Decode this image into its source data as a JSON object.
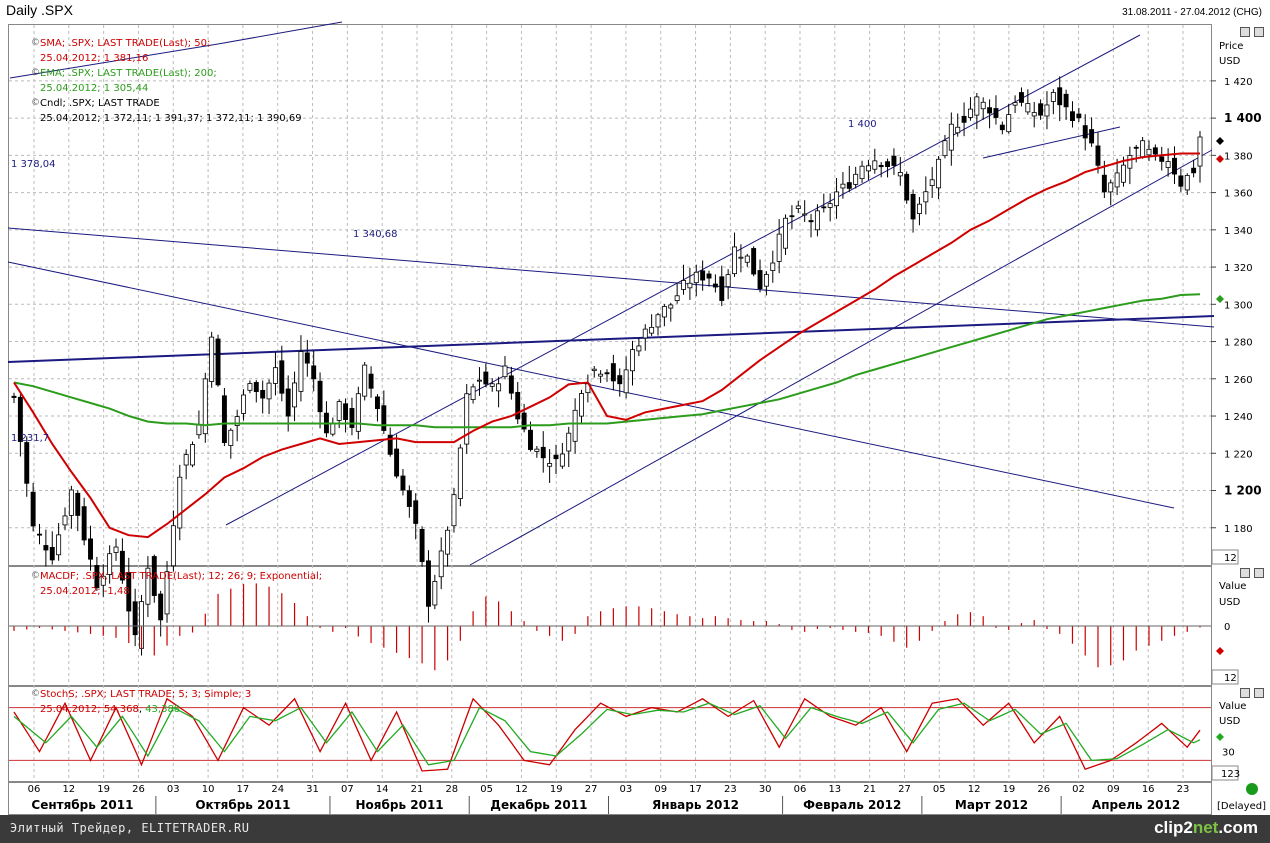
{
  "header": {
    "title": "Daily .SPX",
    "date_range": "31.08.2011 - 27.04.2012 (CHG)"
  },
  "footer": {
    "text": "Элитный Трейдер, ELITETRADER.RU",
    "logo_prefix": "clip2",
    "logo_suffix": "net",
    "logo_tld": ".com"
  },
  "price_panel": {
    "axis_title": "Price",
    "axis_unit": "USD",
    "corner_label": "12",
    "sma_label": "SMA; .SPX; LAST TRADE(Last);  50;",
    "sma_value": "25.04.2012; 1 381,16",
    "ema_label": "EMA; .SPX; LAST TRADE(Last);  200;",
    "ema_value": "25.04.2012; 1 305,44",
    "candle_label": "Cndl; .SPX; LAST TRADE",
    "candle_value": "25.04.2012; 1 372,11; 1 391,37; 1 372,11; 1 390,69",
    "annotations": [
      "1 400",
      "1 378,04",
      "1 340,68",
      "1 231,7"
    ]
  },
  "macd_panel": {
    "label": "MACDF; .SPX; LAST TRADE(Last);  12; 26; 9; Exponential;",
    "value": "25.04.2012; -1,48",
    "axis_title": "Value",
    "axis_unit": "USD",
    "zero_label": "0",
    "corner_label": "12"
  },
  "stoch_panel": {
    "label": "StochS; .SPX; LAST TRADE;  5; 3; Simple; 3",
    "value_prefix": "25.04.2012; ",
    "value_k": "54,368",
    "value_d": "43,388",
    "axis_title": "Value",
    "axis_unit": "USD",
    "tick_label": "30",
    "corner_label": "123"
  },
  "status": "[Delayed]",
  "chart_data": {
    "type": "candlestick",
    "title": "Daily .SPX",
    "ylabel": "Price",
    "yunit": "USD",
    "ylim": [
      1160,
      1450
    ],
    "y_ticks": [
      1180,
      1200,
      1220,
      1240,
      1260,
      1280,
      1300,
      1320,
      1340,
      1360,
      1380,
      1400,
      1420
    ],
    "y_tick_labels": [
      "1 180",
      "1 200",
      "1 220",
      "1 240",
      "1 260",
      "1 280",
      "1 300",
      "1 320",
      "1 340",
      "1 360",
      "1 380",
      "1 400",
      "1 420"
    ],
    "bold_ticks": [
      1200,
      1400
    ],
    "months": [
      "Сентябрь 2011",
      "Октябрь 2011",
      "Ноябрь 2011",
      "Декабрь 2011",
      "Январь 2012",
      "Февраль 2012",
      "Март 2012",
      "Апрель 2012"
    ],
    "day_labels": [
      "06",
      "12",
      "19",
      "26",
      "03",
      "10",
      "17",
      "24",
      "31",
      "07",
      "14",
      "21",
      "28",
      "05",
      "12",
      "19",
      "27",
      "03",
      "09",
      "17",
      "23",
      "30",
      "06",
      "13",
      "21",
      "27",
      "05",
      "12",
      "19",
      "26",
      "02",
      "09",
      "16",
      "23"
    ],
    "month_start_day_index": [
      0,
      4,
      9,
      13,
      17,
      22,
      26,
      30
    ],
    "key_levels": {
      "sma50_last": 1381.16,
      "ema200_last": 1305.44,
      "close_last": 1390.69
    },
    "anchors": [
      [
        0,
        1250
      ],
      [
        3,
        1180
      ],
      [
        6,
        1165
      ],
      [
        9,
        1200
      ],
      [
        13,
        1150
      ],
      [
        16,
        1170
      ],
      [
        19,
        1120
      ],
      [
        21,
        1160
      ],
      [
        23,
        1130
      ],
      [
        26,
        1210
      ],
      [
        29,
        1235
      ],
      [
        31,
        1285
      ],
      [
        33,
        1225
      ],
      [
        35,
        1240
      ],
      [
        37,
        1260
      ],
      [
        39,
        1250
      ],
      [
        41,
        1265
      ],
      [
        43,
        1240
      ],
      [
        45,
        1275
      ],
      [
        47,
        1260
      ],
      [
        49,
        1230
      ],
      [
        51,
        1245
      ],
      [
        53,
        1235
      ],
      [
        55,
        1265
      ],
      [
        57,
        1245
      ],
      [
        59,
        1220
      ],
      [
        61,
        1200
      ],
      [
        63,
        1180
      ],
      [
        65,
        1140
      ],
      [
        67,
        1165
      ],
      [
        69,
        1195
      ],
      [
        71,
        1250
      ],
      [
        73,
        1260
      ],
      [
        75,
        1255
      ],
      [
        77,
        1265
      ],
      [
        79,
        1240
      ],
      [
        81,
        1225
      ],
      [
        83,
        1218
      ],
      [
        85,
        1215
      ],
      [
        87,
        1230
      ],
      [
        89,
        1255
      ],
      [
        91,
        1265
      ],
      [
        93,
        1265
      ],
      [
        95,
        1255
      ],
      [
        97,
        1275
      ],
      [
        99,
        1285
      ],
      [
        101,
        1295
      ],
      [
        103,
        1300
      ],
      [
        105,
        1310
      ],
      [
        107,
        1315
      ],
      [
        109,
        1315
      ],
      [
        111,
        1305
      ],
      [
        113,
        1330
      ],
      [
        115,
        1325
      ],
      [
        117,
        1310
      ],
      [
        119,
        1325
      ],
      [
        121,
        1345
      ],
      [
        123,
        1350
      ],
      [
        125,
        1345
      ],
      [
        127,
        1350
      ],
      [
        129,
        1360
      ],
      [
        131,
        1365
      ],
      [
        133,
        1375
      ],
      [
        135,
        1378
      ],
      [
        137,
        1375
      ],
      [
        139,
        1370
      ],
      [
        141,
        1345
      ],
      [
        143,
        1360
      ],
      [
        145,
        1375
      ],
      [
        147,
        1395
      ],
      [
        149,
        1400
      ],
      [
        151,
        1410
      ],
      [
        153,
        1405
      ],
      [
        155,
        1395
      ],
      [
        157,
        1410
      ],
      [
        159,
        1405
      ],
      [
        161,
        1402
      ],
      [
        163,
        1412
      ],
      [
        165,
        1405
      ],
      [
        167,
        1398
      ],
      [
        169,
        1385
      ],
      [
        171,
        1360
      ],
      [
        173,
        1368
      ],
      [
        175,
        1380
      ],
      [
        177,
        1385
      ],
      [
        179,
        1378
      ],
      [
        181,
        1378
      ],
      [
        183,
        1365
      ],
      [
        185,
        1372
      ],
      [
        186,
        1390
      ]
    ],
    "sma50": [
      [
        0,
        1258
      ],
      [
        3,
        1242
      ],
      [
        6,
        1225
      ],
      [
        9,
        1210
      ],
      [
        12,
        1196
      ],
      [
        15,
        1180
      ],
      [
        18,
        1176
      ],
      [
        21,
        1175
      ],
      [
        24,
        1182
      ],
      [
        27,
        1190
      ],
      [
        30,
        1198
      ],
      [
        33,
        1207
      ],
      [
        36,
        1212
      ],
      [
        39,
        1218
      ],
      [
        42,
        1222
      ],
      [
        45,
        1225
      ],
      [
        48,
        1228
      ],
      [
        51,
        1225
      ],
      [
        54,
        1226
      ],
      [
        57,
        1227
      ],
      [
        60,
        1228
      ],
      [
        63,
        1226
      ],
      [
        66,
        1226
      ],
      [
        69,
        1226
      ],
      [
        72,
        1232
      ],
      [
        75,
        1237
      ],
      [
        78,
        1240
      ],
      [
        81,
        1245
      ],
      [
        84,
        1250
      ],
      [
        87,
        1257
      ],
      [
        90,
        1258
      ],
      [
        93,
        1240
      ],
      [
        96,
        1238
      ],
      [
        99,
        1242
      ],
      [
        102,
        1244
      ],
      [
        105,
        1246
      ],
      [
        108,
        1248
      ],
      [
        111,
        1254
      ],
      [
        114,
        1262
      ],
      [
        117,
        1270
      ],
      [
        120,
        1277
      ],
      [
        123,
        1284
      ],
      [
        126,
        1290
      ],
      [
        129,
        1296
      ],
      [
        132,
        1302
      ],
      [
        135,
        1308
      ],
      [
        138,
        1315
      ],
      [
        141,
        1321
      ],
      [
        144,
        1327
      ],
      [
        147,
        1333
      ],
      [
        150,
        1340
      ],
      [
        153,
        1345
      ],
      [
        156,
        1351
      ],
      [
        159,
        1357
      ],
      [
        162,
        1362
      ],
      [
        165,
        1366
      ],
      [
        168,
        1371
      ],
      [
        171,
        1374
      ],
      [
        174,
        1377
      ],
      [
        177,
        1379
      ],
      [
        180,
        1380
      ],
      [
        183,
        1381
      ],
      [
        186,
        1381
      ]
    ],
    "ema200": [
      [
        0,
        1258
      ],
      [
        3,
        1256
      ],
      [
        6,
        1253
      ],
      [
        9,
        1250
      ],
      [
        12,
        1247
      ],
      [
        15,
        1244
      ],
      [
        18,
        1240
      ],
      [
        21,
        1237
      ],
      [
        24,
        1236
      ],
      [
        27,
        1236
      ],
      [
        30,
        1235
      ],
      [
        33,
        1236
      ],
      [
        36,
        1236
      ],
      [
        39,
        1236
      ],
      [
        42,
        1236
      ],
      [
        45,
        1236
      ],
      [
        48,
        1236
      ],
      [
        51,
        1236
      ],
      [
        54,
        1236
      ],
      [
        57,
        1235
      ],
      [
        60,
        1235
      ],
      [
        63,
        1235
      ],
      [
        66,
        1234
      ],
      [
        69,
        1234
      ],
      [
        72,
        1234
      ],
      [
        75,
        1234
      ],
      [
        78,
        1234
      ],
      [
        81,
        1235
      ],
      [
        84,
        1235
      ],
      [
        87,
        1236
      ],
      [
        90,
        1236
      ],
      [
        93,
        1236
      ],
      [
        96,
        1237
      ],
      [
        99,
        1238
      ],
      [
        102,
        1239
      ],
      [
        105,
        1240
      ],
      [
        108,
        1241
      ],
      [
        111,
        1243
      ],
      [
        114,
        1245
      ],
      [
        117,
        1247
      ],
      [
        120,
        1249
      ],
      [
        123,
        1252
      ],
      [
        126,
        1255
      ],
      [
        129,
        1258
      ],
      [
        132,
        1262
      ],
      [
        135,
        1265
      ],
      [
        138,
        1268
      ],
      [
        141,
        1271
      ],
      [
        144,
        1274
      ],
      [
        147,
        1277
      ],
      [
        150,
        1280
      ],
      [
        153,
        1283
      ],
      [
        156,
        1286
      ],
      [
        159,
        1289
      ],
      [
        162,
        1292
      ],
      [
        165,
        1294
      ],
      [
        168,
        1296
      ],
      [
        171,
        1298
      ],
      [
        174,
        1300
      ],
      [
        177,
        1302
      ],
      [
        180,
        1303
      ],
      [
        183,
        1305
      ],
      [
        186,
        1305.44
      ]
    ],
    "macd_ylim": [
      -60,
      60
    ],
    "macd": [
      [
        0,
        -5
      ],
      [
        4,
        -2
      ],
      [
        8,
        -5
      ],
      [
        12,
        -8
      ],
      [
        16,
        -12
      ],
      [
        19,
        -20
      ],
      [
        22,
        -30
      ],
      [
        24,
        -20
      ],
      [
        26,
        -10
      ],
      [
        29,
        -5
      ],
      [
        31,
        30
      ],
      [
        34,
        38
      ],
      [
        37,
        45
      ],
      [
        40,
        40
      ],
      [
        43,
        30
      ],
      [
        46,
        10
      ],
      [
        49,
        -8
      ],
      [
        52,
        -2
      ],
      [
        55,
        -15
      ],
      [
        58,
        -22
      ],
      [
        61,
        -30
      ],
      [
        64,
        -38
      ],
      [
        66,
        -45
      ],
      [
        68,
        -35
      ],
      [
        70,
        -15
      ],
      [
        72,
        15
      ],
      [
        74,
        30
      ],
      [
        76,
        25
      ],
      [
        78,
        15
      ],
      [
        80,
        5
      ],
      [
        82,
        -5
      ],
      [
        84,
        -10
      ],
      [
        86,
        -15
      ],
      [
        88,
        -8
      ],
      [
        90,
        10
      ],
      [
        92,
        15
      ],
      [
        94,
        18
      ],
      [
        96,
        20
      ],
      [
        98,
        20
      ],
      [
        100,
        18
      ],
      [
        102,
        15
      ],
      [
        104,
        12
      ],
      [
        106,
        10
      ],
      [
        108,
        8
      ],
      [
        110,
        10
      ],
      [
        112,
        8
      ],
      [
        114,
        6
      ],
      [
        116,
        5
      ],
      [
        118,
        5
      ],
      [
        120,
        2
      ],
      [
        122,
        -4
      ],
      [
        124,
        -6
      ],
      [
        126,
        -3
      ],
      [
        128,
        -2
      ],
      [
        130,
        -4
      ],
      [
        132,
        -6
      ],
      [
        134,
        -7
      ],
      [
        136,
        -10
      ],
      [
        138,
        -16
      ],
      [
        140,
        -22
      ],
      [
        142,
        -15
      ],
      [
        144,
        -5
      ],
      [
        146,
        5
      ],
      [
        148,
        12
      ],
      [
        150,
        14
      ],
      [
        152,
        10
      ],
      [
        154,
        -2
      ],
      [
        156,
        -4
      ],
      [
        158,
        3
      ],
      [
        160,
        6
      ],
      [
        162,
        -3
      ],
      [
        164,
        -8
      ],
      [
        166,
        -18
      ],
      [
        168,
        -30
      ],
      [
        170,
        -42
      ],
      [
        172,
        -40
      ],
      [
        174,
        -35
      ],
      [
        176,
        -25
      ],
      [
        178,
        -20
      ],
      [
        180,
        -15
      ],
      [
        182,
        -10
      ],
      [
        184,
        -6
      ],
      [
        186,
        -1.48
      ]
    ],
    "stoch_ylim": [
      0,
      100
    ],
    "stoch_levels": [
      20,
      80
    ],
    "stoch_k": [
      [
        0,
        75
      ],
      [
        4,
        30
      ],
      [
        8,
        85
      ],
      [
        12,
        20
      ],
      [
        16,
        80
      ],
      [
        20,
        15
      ],
      [
        24,
        90
      ],
      [
        28,
        70
      ],
      [
        32,
        20
      ],
      [
        36,
        80
      ],
      [
        40,
        60
      ],
      [
        44,
        90
      ],
      [
        48,
        30
      ],
      [
        52,
        85
      ],
      [
        56,
        20
      ],
      [
        60,
        75
      ],
      [
        64,
        8
      ],
      [
        68,
        10
      ],
      [
        72,
        90
      ],
      [
        76,
        60
      ],
      [
        80,
        20
      ],
      [
        84,
        15
      ],
      [
        88,
        55
      ],
      [
        92,
        85
      ],
      [
        96,
        70
      ],
      [
        100,
        80
      ],
      [
        104,
        75
      ],
      [
        108,
        90
      ],
      [
        112,
        70
      ],
      [
        116,
        88
      ],
      [
        120,
        35
      ],
      [
        124,
        90
      ],
      [
        128,
        70
      ],
      [
        132,
        60
      ],
      [
        136,
        80
      ],
      [
        140,
        30
      ],
      [
        144,
        85
      ],
      [
        148,
        90
      ],
      [
        152,
        60
      ],
      [
        156,
        85
      ],
      [
        160,
        40
      ],
      [
        164,
        70
      ],
      [
        168,
        10
      ],
      [
        172,
        20
      ],
      [
        176,
        40
      ],
      [
        180,
        62
      ],
      [
        184,
        35
      ],
      [
        186,
        54.368
      ]
    ],
    "stoch_d": [
      [
        0,
        70
      ],
      [
        5,
        40
      ],
      [
        9,
        70
      ],
      [
        13,
        35
      ],
      [
        17,
        70
      ],
      [
        21,
        25
      ],
      [
        25,
        80
      ],
      [
        29,
        65
      ],
      [
        33,
        30
      ],
      [
        37,
        70
      ],
      [
        41,
        65
      ],
      [
        45,
        80
      ],
      [
        49,
        40
      ],
      [
        53,
        75
      ],
      [
        57,
        30
      ],
      [
        61,
        60
      ],
      [
        65,
        15
      ],
      [
        69,
        20
      ],
      [
        73,
        80
      ],
      [
        77,
        65
      ],
      [
        81,
        30
      ],
      [
        85,
        25
      ],
      [
        89,
        50
      ],
      [
        93,
        78
      ],
      [
        97,
        72
      ],
      [
        101,
        77
      ],
      [
        105,
        75
      ],
      [
        109,
        85
      ],
      [
        113,
        72
      ],
      [
        117,
        82
      ],
      [
        121,
        45
      ],
      [
        125,
        80
      ],
      [
        129,
        70
      ],
      [
        133,
        62
      ],
      [
        137,
        75
      ],
      [
        141,
        40
      ],
      [
        145,
        78
      ],
      [
        149,
        85
      ],
      [
        153,
        65
      ],
      [
        157,
        78
      ],
      [
        161,
        50
      ],
      [
        165,
        62
      ],
      [
        169,
        20
      ],
      [
        173,
        22
      ],
      [
        177,
        38
      ],
      [
        181,
        55
      ],
      [
        185,
        40
      ],
      [
        186,
        43.388
      ]
    ]
  },
  "colors": {
    "candle_up": "#ffffff",
    "candle_down": "#000000",
    "sma": "#d00000",
    "ema": "#2c9c1c",
    "trendline": "#1a1a80",
    "macd": "#cc0000",
    "stoch_k": "#cc0000",
    "stoch_d": "#22aa22",
    "grid": "#b0b0b0"
  }
}
